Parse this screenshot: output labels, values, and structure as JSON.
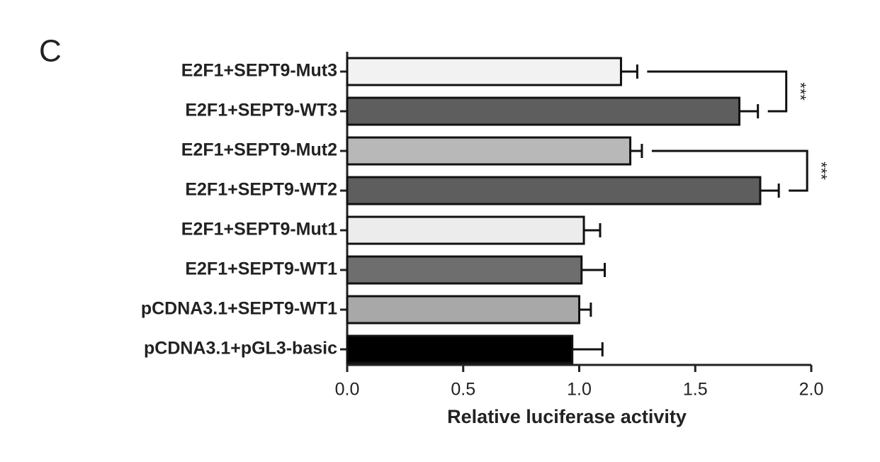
{
  "chart_data": {
    "type": "hbar",
    "panel_label": "C",
    "x_label": "Relative luciferase activity",
    "categories": [
      "E2F1+SEPT9-Mut3",
      "E2F1+SEPT9-WT3",
      "E2F1+SEPT9-Mut2",
      "E2F1+SEPT9-WT2",
      "E2F1+SEPT9-Mut1",
      "E2F1+SEPT9-WT1",
      "pCDNA3.1+SEPT9-WT1",
      "pCDNA3.1+pGL3-basic"
    ],
    "values": [
      1.18,
      1.69,
      1.22,
      1.78,
      1.02,
      1.01,
      1.0,
      0.97
    ],
    "errors": [
      0.07,
      0.08,
      0.05,
      0.08,
      0.07,
      0.1,
      0.05,
      0.13
    ],
    "colors": [
      "#f2f2f2",
      "#5e5e5e",
      "#b8b8b8",
      "#5e5e5e",
      "#ececec",
      "#6e6e6e",
      "#a8a8a8",
      "#000000"
    ],
    "xlim": [
      0,
      2
    ],
    "xticks": [
      {
        "value": 0,
        "label": "0.0"
      },
      0.5,
      {
        "value": 1,
        "label": "1.0"
      },
      1.5,
      {
        "value": 2,
        "label": "2.0"
      }
    ],
    "annotations": [
      {
        "text": "***",
        "between": [
          "E2F1+SEPT9-Mut3",
          "E2F1+SEPT9-WT3"
        ]
      },
      {
        "text": "***",
        "between": [
          "E2F1+SEPT9-Mut2",
          "E2F1+SEPT9-WT2"
        ]
      }
    ]
  }
}
